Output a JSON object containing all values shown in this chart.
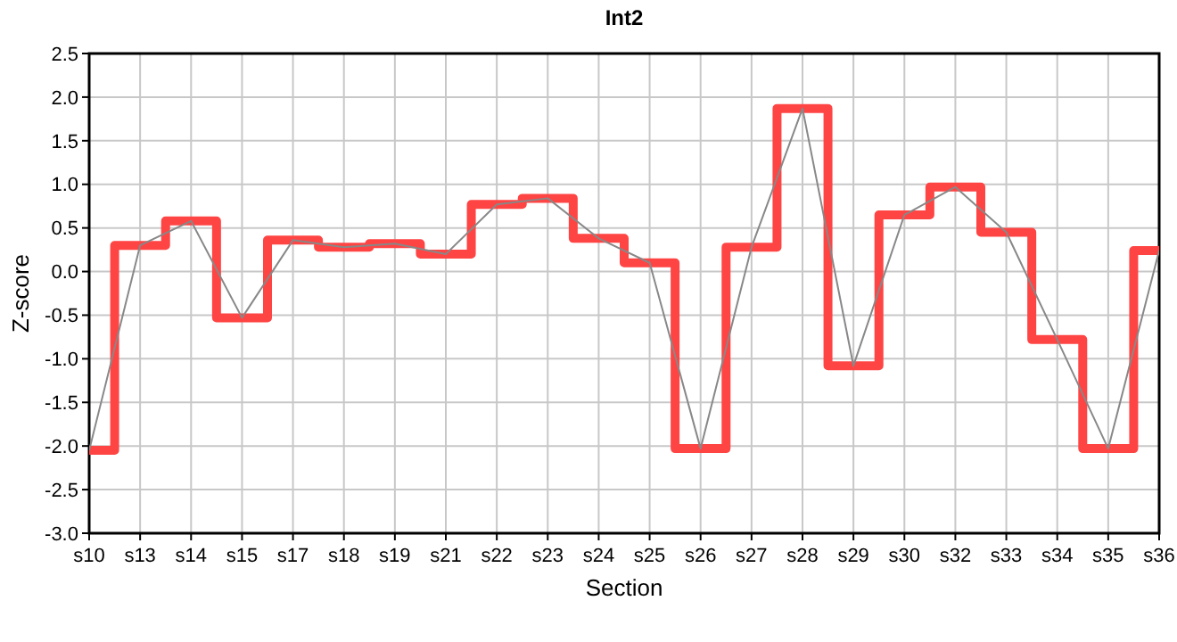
{
  "chart_data": {
    "type": "line",
    "title": "Int2",
    "xlabel": "Section",
    "ylabel": "Z-score",
    "categories": [
      "s10",
      "s13",
      "s14",
      "s15",
      "s17",
      "s18",
      "s19",
      "s21",
      "s22",
      "s23",
      "s24",
      "s25",
      "s26",
      "s27",
      "s28",
      "s29",
      "s30",
      "s32",
      "s33",
      "s34",
      "s35",
      "s36"
    ],
    "series": [
      {
        "type": "step",
        "color": "#ff4444",
        "values": [
          -2.05,
          0.3,
          0.58,
          -0.53,
          0.36,
          0.28,
          0.32,
          0.2,
          0.77,
          0.84,
          0.38,
          0.1,
          -2.03,
          0.28,
          1.87,
          -1.08,
          0.65,
          0.97,
          0.45,
          -0.78,
          -2.03,
          0.24
        ]
      },
      {
        "color": "#888888",
        "values": [
          -2.05,
          0.3,
          0.58,
          -0.53,
          0.36,
          0.28,
          0.32,
          0.2,
          0.77,
          0.84,
          0.38,
          0.1,
          -2.03,
          0.28,
          1.87,
          -1.08,
          0.65,
          0.97,
          0.45,
          -0.78,
          -2.03,
          0.24
        ]
      }
    ],
    "ylim": [
      -3,
      2.5
    ],
    "yticks": [
      {
        "value": -3,
        "label": "-3.0"
      },
      {
        "value": -2.5,
        "label": "-2.5"
      },
      {
        "value": -2,
        "label": "-2.0"
      },
      {
        "value": -1.5,
        "label": "-1.5"
      },
      {
        "value": -1,
        "label": "-1.0"
      },
      {
        "value": -0.5,
        "label": "-0.5"
      },
      {
        "value": 0,
        "label": "0.0"
      },
      {
        "value": 0.5,
        "label": "0.5"
      },
      {
        "value": 1,
        "label": "1.0"
      },
      {
        "value": 1.5,
        "label": "1.5"
      },
      {
        "value": 2,
        "label": "2.0"
      },
      {
        "value": 2.5,
        "label": "2.5"
      }
    ],
    "grid": true
  }
}
